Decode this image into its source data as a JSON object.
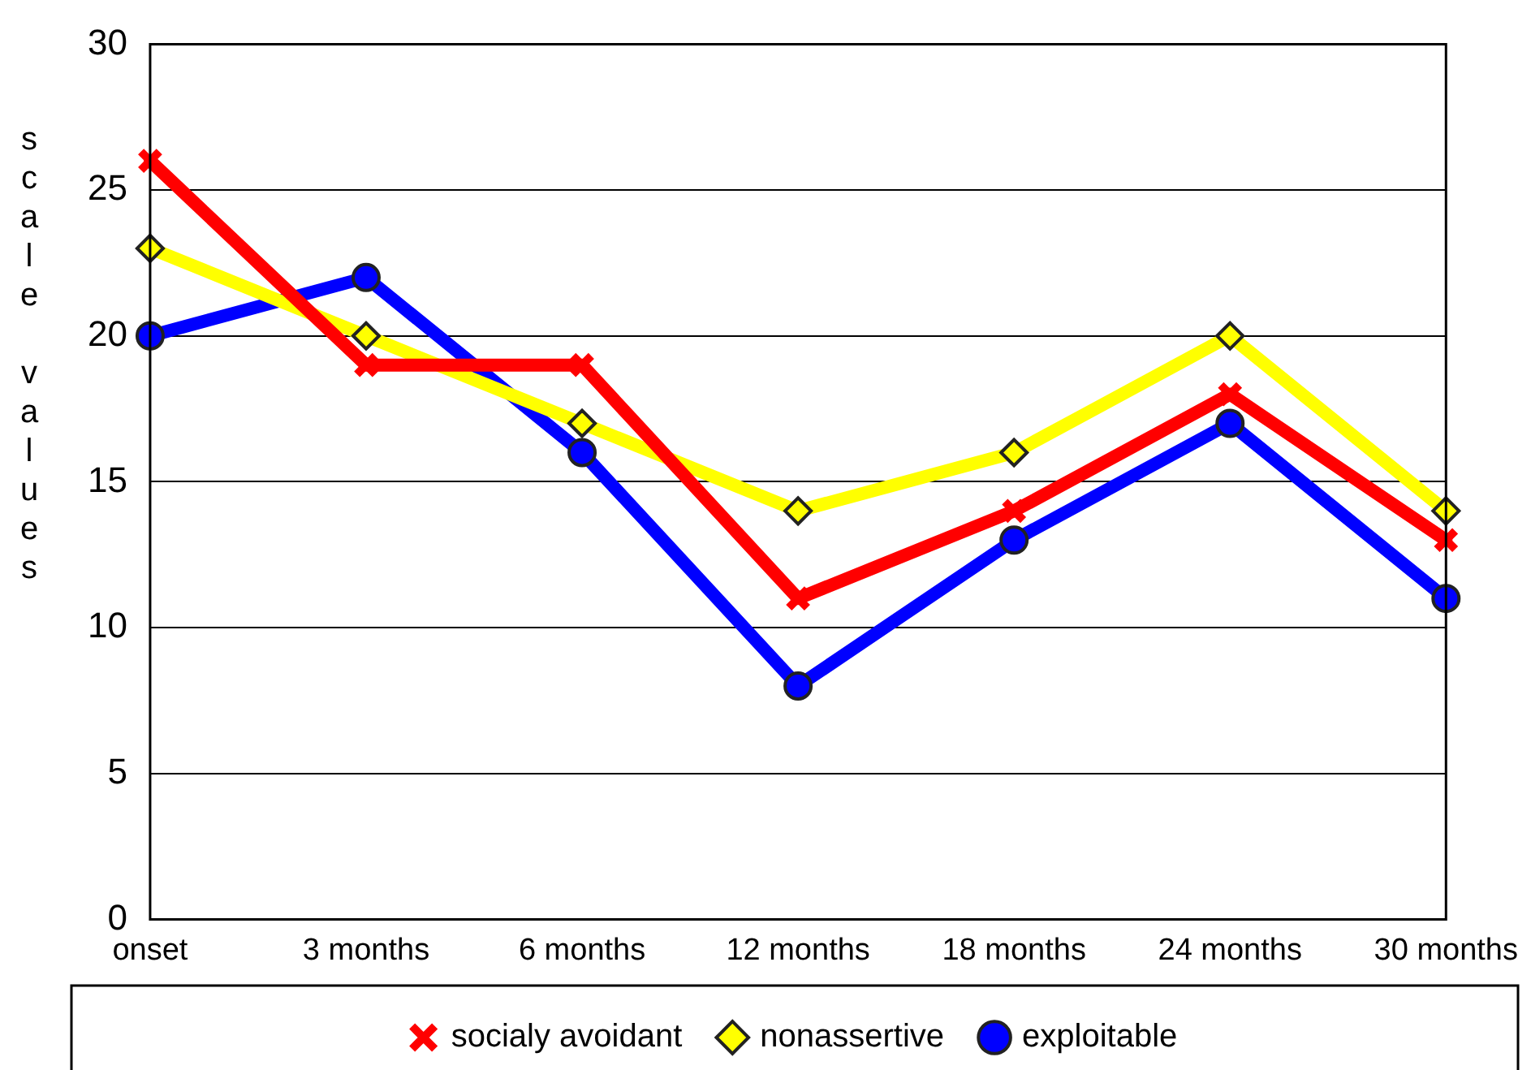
{
  "chart_data": {
    "type": "line",
    "ylabel": "scale values",
    "categories": [
      "onset",
      "3 months",
      "6 months",
      "12 months",
      "18 months",
      "24 months",
      "30 months"
    ],
    "series": [
      {
        "name": "socialy avoidant",
        "color": "#ff0000",
        "marker": "cross",
        "values": [
          26,
          19,
          19,
          11,
          14,
          18,
          13
        ]
      },
      {
        "name": "nonassertive",
        "color": "#ffff00",
        "marker": "diamond",
        "values": [
          23,
          20,
          17,
          14,
          16,
          20,
          14
        ]
      },
      {
        "name": "exploitable",
        "color": "#0000ff",
        "marker": "circle",
        "values": [
          20,
          22,
          16,
          8,
          13,
          17,
          11
        ]
      }
    ],
    "ylim": [
      0,
      30
    ],
    "yticks": [
      0,
      5,
      10,
      15,
      20,
      25,
      30
    ],
    "grid": "y",
    "legend": "bottom",
    "line_style": "solid"
  }
}
